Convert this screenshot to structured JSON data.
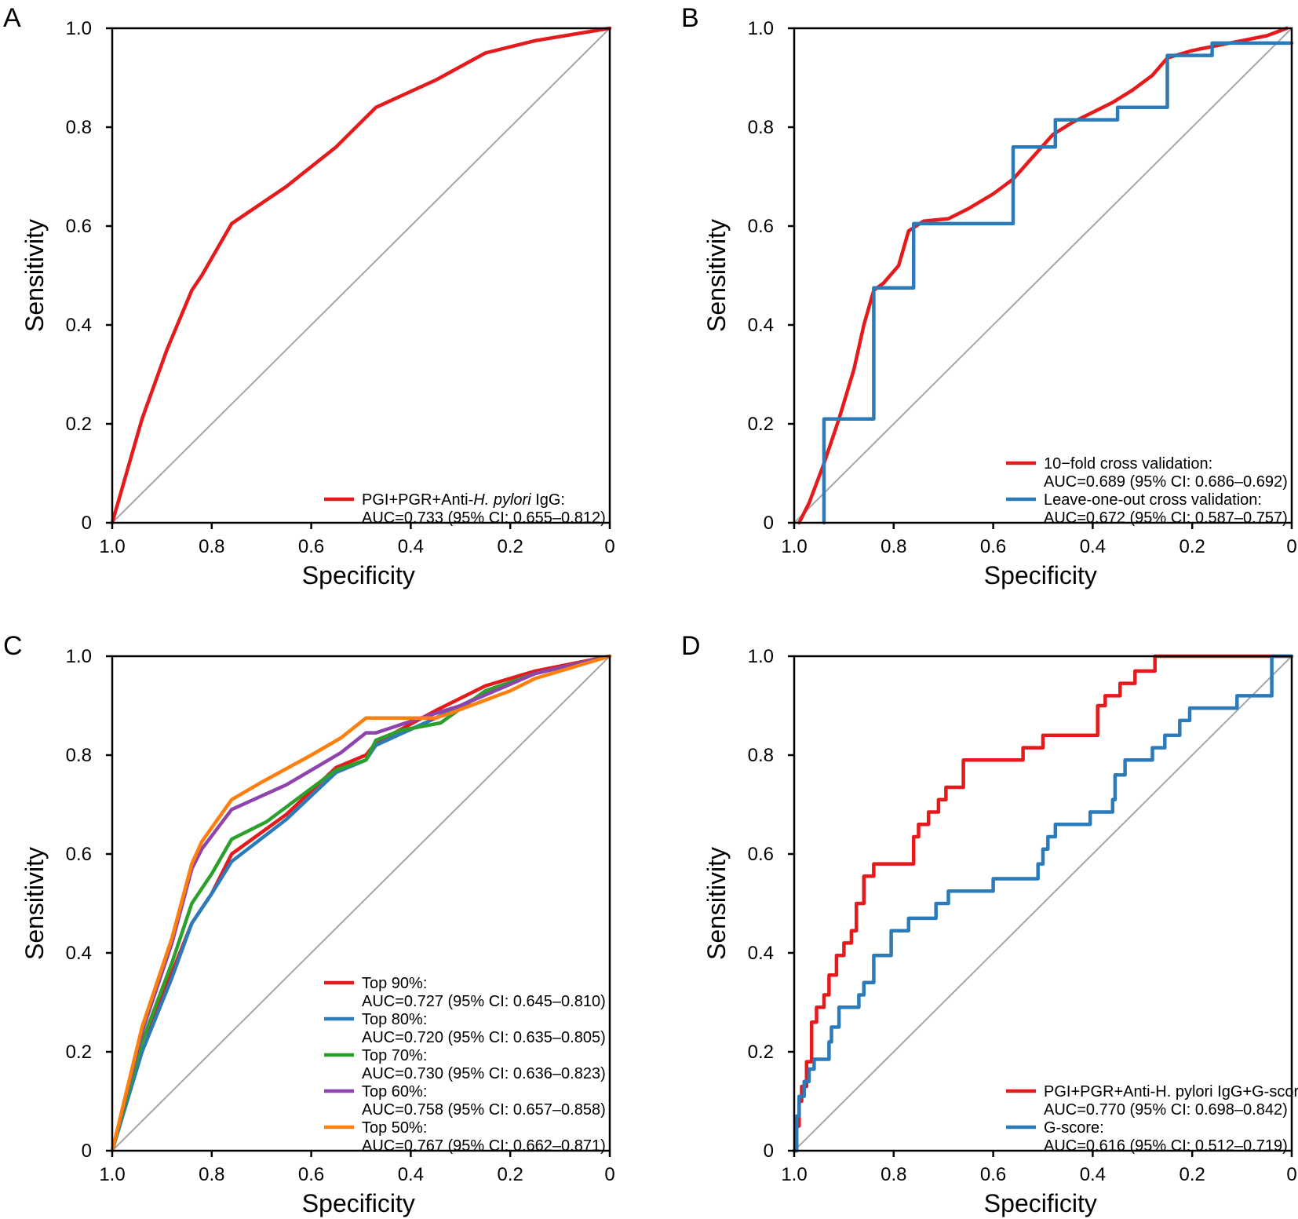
{
  "figure": {
    "panels": [
      "A",
      "B",
      "C",
      "D"
    ]
  },
  "chart_data": [
    {
      "panel": "A",
      "type": "line",
      "xlabel": "Specificity",
      "ylabel": "Sensitivity",
      "xlim": [
        1.0,
        0
      ],
      "ylim": [
        0,
        1.0
      ],
      "x_reversed": true,
      "x_ticks": [
        "1.0",
        "0.8",
        "0.6",
        "0.4",
        "0.2",
        "0"
      ],
      "y_ticks": [
        "0",
        "0.2",
        "0.4",
        "0.6",
        "0.8",
        "1.0"
      ],
      "legend_position": "bottom-right",
      "reference_line": true,
      "series": [
        {
          "name_parts": [
            "PGI+PGR+Anti-",
            "H. pylori",
            " IgG:"
          ],
          "auc": "AUC=0.733 (95% CI: 0.655–0.812)",
          "color": "#e41a1c",
          "x": [
            1.0,
            0.94,
            0.89,
            0.84,
            0.82,
            0.76,
            0.65,
            0.55,
            0.5,
            0.48,
            0.47,
            0.35,
            0.25,
            0.15,
            0.0
          ],
          "y": [
            0.0,
            0.21,
            0.35,
            0.47,
            0.5,
            0.605,
            0.68,
            0.76,
            0.81,
            0.83,
            0.84,
            0.895,
            0.95,
            0.975,
            1.0
          ]
        }
      ]
    },
    {
      "panel": "B",
      "type": "line",
      "xlabel": "Specificity",
      "ylabel": "Sensitivity",
      "xlim": [
        1.0,
        0
      ],
      "ylim": [
        0,
        1.0
      ],
      "x_reversed": true,
      "x_ticks": [
        "1.0",
        "0.8",
        "0.6",
        "0.4",
        "0.2",
        "0"
      ],
      "y_ticks": [
        "0",
        "0.2",
        "0.4",
        "0.6",
        "0.8",
        "1.0"
      ],
      "legend_position": "bottom-right",
      "reference_line": true,
      "series": [
        {
          "name_parts": [
            "10−fold cross validation:"
          ],
          "auc": "AUC=0.689 (95% CI: 0.686–0.692)",
          "color": "#e41a1c",
          "x": [
            0.99,
            0.97,
            0.94,
            0.91,
            0.88,
            0.86,
            0.84,
            0.82,
            0.79,
            0.77,
            0.74,
            0.69,
            0.65,
            0.6,
            0.56,
            0.52,
            0.48,
            0.44,
            0.4,
            0.36,
            0.32,
            0.28,
            0.25,
            0.2,
            0.15,
            0.1,
            0.05,
            0.01
          ],
          "y": [
            0.0,
            0.04,
            0.12,
            0.21,
            0.31,
            0.4,
            0.47,
            0.485,
            0.52,
            0.59,
            0.61,
            0.615,
            0.635,
            0.665,
            0.695,
            0.74,
            0.785,
            0.81,
            0.83,
            0.85,
            0.875,
            0.905,
            0.94,
            0.955,
            0.965,
            0.975,
            0.985,
            1.0
          ]
        },
        {
          "name_parts": [
            "Leave-one-out cross validation:"
          ],
          "auc": "AUC=0.672 (95% CI: 0.587–0.757)",
          "color": "#2b7bba",
          "step": true,
          "x": [
            0.94,
            0.94,
            0.84,
            0.84,
            0.76,
            0.76,
            0.56,
            0.56,
            0.475,
            0.475,
            0.35,
            0.35,
            0.25,
            0.25,
            0.16,
            0.16,
            0.0
          ],
          "y": [
            0.0,
            0.21,
            0.21,
            0.475,
            0.475,
            0.605,
            0.605,
            0.76,
            0.76,
            0.815,
            0.815,
            0.84,
            0.84,
            0.945,
            0.945,
            0.97,
            0.97
          ]
        }
      ]
    },
    {
      "panel": "C",
      "type": "line",
      "xlabel": "Specificity",
      "ylabel": "Sensitivity",
      "xlim": [
        1.0,
        0
      ],
      "ylim": [
        0,
        1.0
      ],
      "x_reversed": true,
      "x_ticks": [
        "1.0",
        "0.8",
        "0.6",
        "0.4",
        "0.2",
        "0"
      ],
      "y_ticks": [
        "0",
        "0.2",
        "0.4",
        "0.6",
        "0.8",
        "1.0"
      ],
      "legend_position": "bottom-right",
      "reference_line": true,
      "series": [
        {
          "name_parts": [
            "Top 90%:"
          ],
          "auc": "AUC=0.727 (95% CI: 0.645–0.810)",
          "color": "#e41a1c",
          "x": [
            1.0,
            0.94,
            0.88,
            0.84,
            0.8,
            0.76,
            0.65,
            0.55,
            0.49,
            0.47,
            0.35,
            0.25,
            0.15,
            0.0
          ],
          "y": [
            0.0,
            0.22,
            0.36,
            0.46,
            0.52,
            0.6,
            0.68,
            0.775,
            0.8,
            0.825,
            0.89,
            0.94,
            0.97,
            1.0
          ]
        },
        {
          "name_parts": [
            "Top 80%:"
          ],
          "auc": "AUC=0.720 (95% CI: 0.635–0.805)",
          "color": "#2b7bba",
          "x": [
            1.0,
            0.94,
            0.88,
            0.84,
            0.8,
            0.76,
            0.65,
            0.55,
            0.49,
            0.47,
            0.35,
            0.25,
            0.15,
            0.0
          ],
          "y": [
            0.0,
            0.2,
            0.35,
            0.46,
            0.52,
            0.585,
            0.67,
            0.765,
            0.79,
            0.82,
            0.875,
            0.925,
            0.965,
            1.0
          ]
        },
        {
          "name_parts": [
            "Top 70%:"
          ],
          "auc": "AUC=0.730 (95% CI: 0.636–0.823)",
          "color": "#2ca02c",
          "x": [
            1.0,
            0.94,
            0.88,
            0.84,
            0.8,
            0.76,
            0.69,
            0.55,
            0.49,
            0.47,
            0.42,
            0.34,
            0.25,
            0.15,
            0.0
          ],
          "y": [
            0.0,
            0.22,
            0.38,
            0.5,
            0.56,
            0.63,
            0.665,
            0.77,
            0.79,
            0.83,
            0.85,
            0.865,
            0.93,
            0.965,
            1.0
          ]
        },
        {
          "name_parts": [
            "Top 60%:"
          ],
          "auc": "AUC=0.758 (95% CI: 0.657–0.858)",
          "color": "#8e44ad",
          "x": [
            1.0,
            0.94,
            0.88,
            0.84,
            0.82,
            0.76,
            0.65,
            0.54,
            0.49,
            0.47,
            0.38,
            0.3,
            0.15,
            0.0
          ],
          "y": [
            0.0,
            0.24,
            0.42,
            0.57,
            0.61,
            0.69,
            0.74,
            0.805,
            0.845,
            0.845,
            0.875,
            0.9,
            0.965,
            1.0
          ]
        },
        {
          "name_parts": [
            "Top 50%:"
          ],
          "auc": "AUC=0.767 (95% CI: 0.662–0.871)",
          "color": "#ff7f0e",
          "x": [
            1.0,
            0.94,
            0.88,
            0.84,
            0.82,
            0.76,
            0.7,
            0.6,
            0.54,
            0.49,
            0.45,
            0.35,
            0.32,
            0.2,
            0.15,
            0.0
          ],
          "y": [
            0.0,
            0.25,
            0.43,
            0.58,
            0.625,
            0.71,
            0.745,
            0.8,
            0.835,
            0.875,
            0.875,
            0.875,
            0.885,
            0.93,
            0.955,
            1.0
          ]
        }
      ]
    },
    {
      "panel": "D",
      "type": "line",
      "xlabel": "Specificity",
      "ylabel": "Sensitivity",
      "xlim": [
        1.0,
        0
      ],
      "ylim": [
        0,
        1.0
      ],
      "x_reversed": true,
      "x_ticks": [
        "1.0",
        "0.8",
        "0.6",
        "0.4",
        "0.2",
        "0"
      ],
      "y_ticks": [
        "0",
        "0.2",
        "0.4",
        "0.6",
        "0.8",
        "1.0"
      ],
      "legend_position": "bottom-right",
      "reference_line": true,
      "series": [
        {
          "name_parts": [
            "PGI+PGR+Anti-H. pylori IgG+G-score:"
          ],
          "auc": "AUC=0.770 (95% CI: 0.698–0.842)",
          "color": "#e41a1c",
          "step": true,
          "x": [
            1.0,
            0.995,
            0.995,
            0.99,
            0.99,
            0.985,
            0.985,
            0.975,
            0.975,
            0.965,
            0.965,
            0.955,
            0.955,
            0.94,
            0.94,
            0.93,
            0.93,
            0.915,
            0.915,
            0.9,
            0.9,
            0.885,
            0.885,
            0.875,
            0.875,
            0.86,
            0.86,
            0.84,
            0.84,
            0.815,
            0.815,
            0.76,
            0.76,
            0.75,
            0.75,
            0.73,
            0.73,
            0.71,
            0.71,
            0.695,
            0.695,
            0.675,
            0.675,
            0.66,
            0.66,
            0.6,
            0.6,
            0.54,
            0.54,
            0.5,
            0.5,
            0.39,
            0.39,
            0.375,
            0.375,
            0.345,
            0.345,
            0.315,
            0.315,
            0.275,
            0.275,
            0.0
          ],
          "y": [
            0.0,
            0.0,
            0.05,
            0.05,
            0.1,
            0.1,
            0.13,
            0.13,
            0.18,
            0.18,
            0.26,
            0.26,
            0.29,
            0.29,
            0.315,
            0.315,
            0.355,
            0.355,
            0.395,
            0.395,
            0.42,
            0.42,
            0.445,
            0.445,
            0.5,
            0.5,
            0.555,
            0.555,
            0.58,
            0.58,
            0.58,
            0.58,
            0.635,
            0.635,
            0.66,
            0.66,
            0.685,
            0.685,
            0.71,
            0.71,
            0.735,
            0.735,
            0.735,
            0.735,
            0.79,
            0.79,
            0.79,
            0.79,
            0.815,
            0.815,
            0.84,
            0.84,
            0.9,
            0.9,
            0.92,
            0.92,
            0.945,
            0.945,
            0.97,
            0.97,
            1.0,
            1.0
          ]
        },
        {
          "name_parts": [
            "G-score:"
          ],
          "auc": "AUC=0.616 (95% CI: 0.512–0.719)",
          "color": "#2b7bba",
          "step": true,
          "x": [
            1.0,
            0.995,
            0.995,
            0.99,
            0.99,
            0.98,
            0.98,
            0.97,
            0.97,
            0.96,
            0.96,
            0.93,
            0.93,
            0.925,
            0.925,
            0.91,
            0.91,
            0.87,
            0.87,
            0.86,
            0.86,
            0.84,
            0.84,
            0.83,
            0.83,
            0.805,
            0.805,
            0.77,
            0.77,
            0.745,
            0.745,
            0.715,
            0.715,
            0.69,
            0.69,
            0.6,
            0.6,
            0.51,
            0.51,
            0.5,
            0.5,
            0.49,
            0.49,
            0.475,
            0.475,
            0.405,
            0.405,
            0.36,
            0.36,
            0.355,
            0.355,
            0.335,
            0.335,
            0.3,
            0.3,
            0.28,
            0.28,
            0.255,
            0.255,
            0.225,
            0.225,
            0.205,
            0.205,
            0.19,
            0.19,
            0.11,
            0.11,
            0.04,
            0.04,
            0.0
          ],
          "y": [
            0.0,
            0.0,
            0.07,
            0.07,
            0.11,
            0.11,
            0.14,
            0.14,
            0.165,
            0.165,
            0.185,
            0.185,
            0.22,
            0.22,
            0.25,
            0.25,
            0.29,
            0.29,
            0.315,
            0.315,
            0.34,
            0.34,
            0.395,
            0.395,
            0.395,
            0.395,
            0.445,
            0.445,
            0.47,
            0.47,
            0.47,
            0.47,
            0.5,
            0.5,
            0.525,
            0.525,
            0.55,
            0.55,
            0.58,
            0.58,
            0.61,
            0.61,
            0.635,
            0.635,
            0.66,
            0.66,
            0.685,
            0.685,
            0.71,
            0.71,
            0.76,
            0.76,
            0.79,
            0.79,
            0.79,
            0.79,
            0.815,
            0.815,
            0.84,
            0.84,
            0.87,
            0.87,
            0.895,
            0.895,
            0.895,
            0.895,
            0.92,
            0.92,
            1.0,
            1.0
          ]
        }
      ]
    }
  ]
}
